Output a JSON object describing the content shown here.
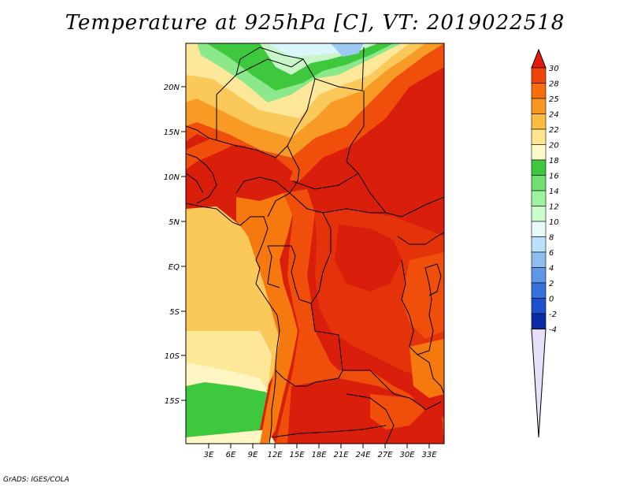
{
  "title": "Temperature at 925hPa [C], VT: 2019022518",
  "credit": "GrADS: IGES/COLA",
  "latitude_labels": [
    "20N",
    "15N",
    "10N",
    "5N",
    "EQ",
    "5S",
    "10S",
    "15S"
  ],
  "longitude_labels": [
    "3E",
    "6E",
    "9E",
    "12E",
    "15E",
    "18E",
    "21E",
    "24E",
    "27E",
    "30E",
    "33E"
  ],
  "colorbar": {
    "labels": [
      "30",
      "28",
      "25",
      "24",
      "22",
      "20",
      "18",
      "16",
      "14",
      "12",
      "10",
      "8",
      "6",
      "4",
      "2",
      "0",
      "-2",
      "-4"
    ],
    "colors": [
      "#e41a0a",
      "#f04508",
      "#f76c0b",
      "#f99620",
      "#fbbc3f",
      "#fee58c",
      "#fffbc8",
      "#3dc83d",
      "#6fe06f",
      "#9ff29f",
      "#ccfccc",
      "#e8fafe",
      "#b9e1fb",
      "#8ebdf0",
      "#5e97e5",
      "#3471db",
      "#1e4fcd",
      "#0b2aa8",
      "#03146f"
    ]
  },
  "map_colors": {
    "hot": "#d91e0c",
    "warm": "#ef4f0a",
    "orange": "#f5790f",
    "lightorange": "#f9a02a",
    "yellow": "#fbc85a",
    "paleyellow": "#fde89a",
    "cream": "#fff6c4",
    "green": "#3dc83d",
    "lightgreen": "#8be88b",
    "mint": "#c9f6c9",
    "ice": "#dbf6fd"
  }
}
